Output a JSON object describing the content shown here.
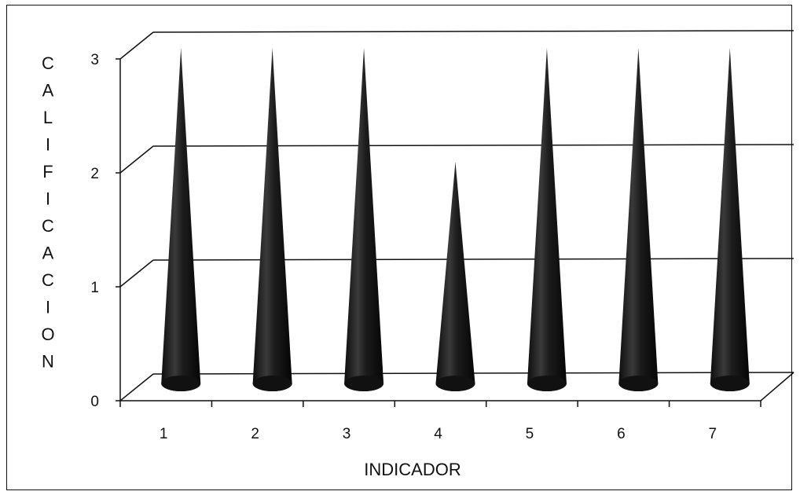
{
  "chart_data": {
    "type": "bar",
    "bar_style": "3d-cone",
    "categories": [
      "1",
      "2",
      "3",
      "4",
      "5",
      "6",
      "7"
    ],
    "values": [
      3,
      3,
      3,
      2,
      3,
      3,
      3
    ],
    "xlabel": "INDICADOR",
    "ylabel": "CALIFICACION",
    "ylim": [
      0,
      3
    ],
    "yticks": [
      "0",
      "1",
      "2",
      "3"
    ],
    "grid": true,
    "legend": "none",
    "colors": {
      "cone": "#1a1a1a",
      "cone_highlight": "#5a5a5a",
      "grid": "#111111"
    }
  }
}
